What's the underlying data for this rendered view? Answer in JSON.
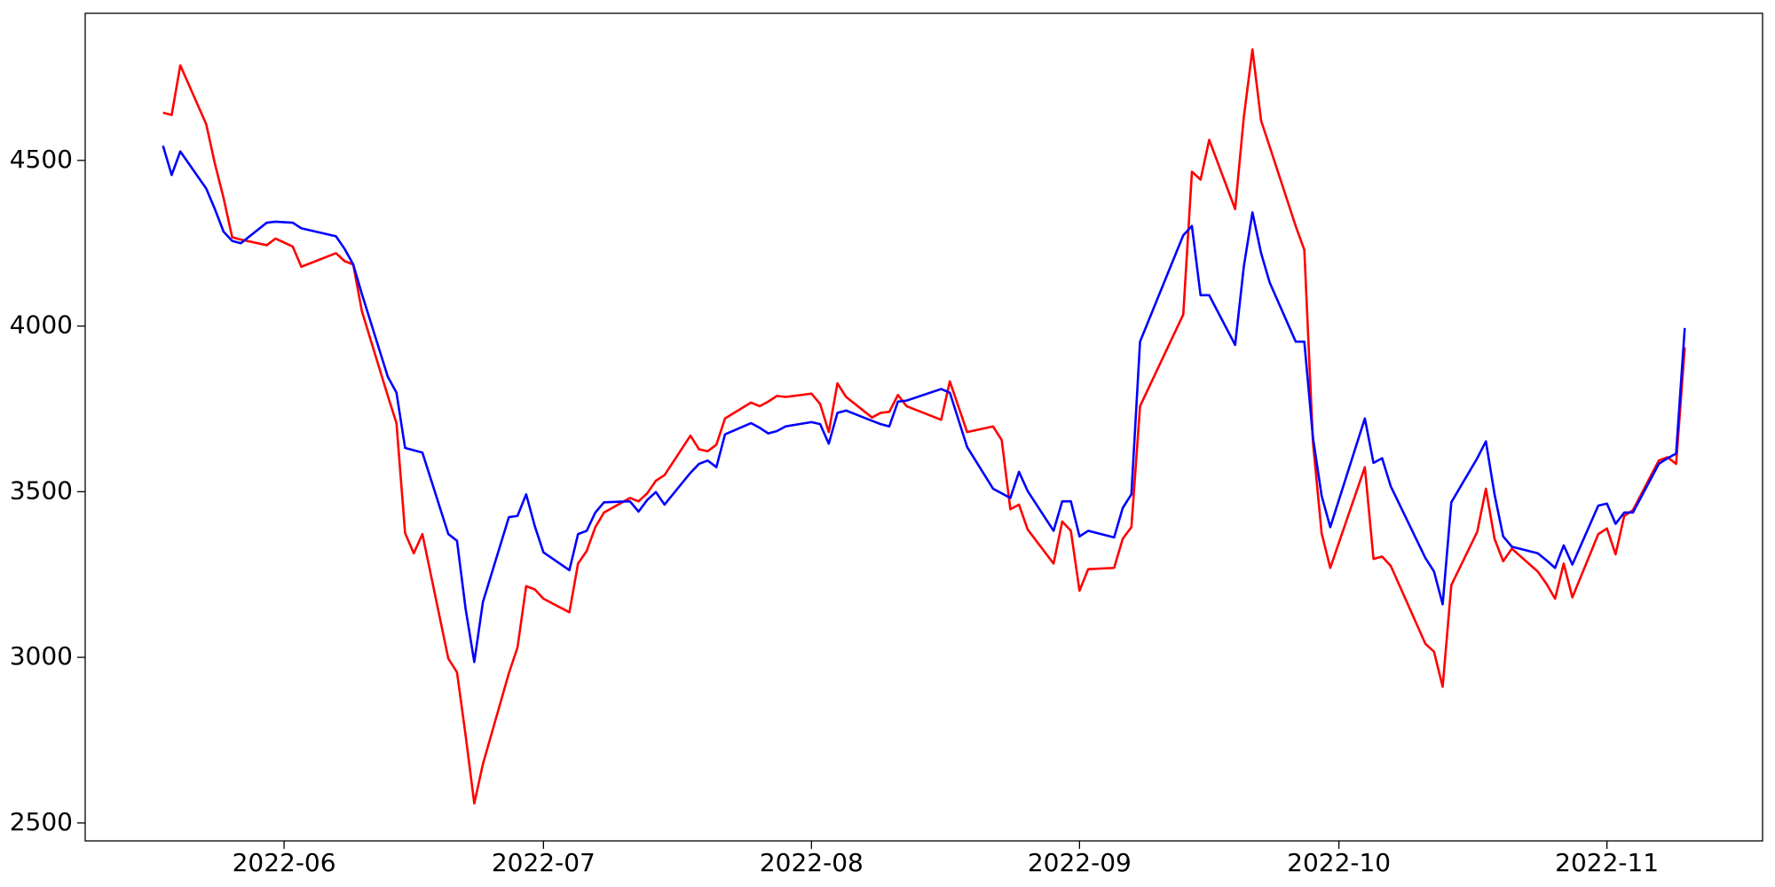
{
  "chart_data": {
    "type": "line",
    "x": [
      "2022-05-18",
      "2022-05-19",
      "2022-05-20",
      "2022-05-23",
      "2022-05-24",
      "2022-05-25",
      "2022-05-26",
      "2022-05-27",
      "2022-05-30",
      "2022-05-31",
      "2022-06-02",
      "2022-06-03",
      "2022-06-07",
      "2022-06-08",
      "2022-06-09",
      "2022-06-10",
      "2022-06-13",
      "2022-06-14",
      "2022-06-15",
      "2022-06-16",
      "2022-06-17",
      "2022-06-20",
      "2022-06-21",
      "2022-06-22",
      "2022-06-23",
      "2022-06-24",
      "2022-06-27",
      "2022-06-28",
      "2022-06-29",
      "2022-06-30",
      "2022-07-01",
      "2022-07-04",
      "2022-07-05",
      "2022-07-06",
      "2022-07-07",
      "2022-07-08",
      "2022-07-11",
      "2022-07-12",
      "2022-07-13",
      "2022-07-14",
      "2022-07-15",
      "2022-07-18",
      "2022-07-19",
      "2022-07-20",
      "2022-07-21",
      "2022-07-22",
      "2022-07-25",
      "2022-07-26",
      "2022-07-27",
      "2022-07-28",
      "2022-07-29",
      "2022-08-01",
      "2022-08-02",
      "2022-08-03",
      "2022-08-04",
      "2022-08-05",
      "2022-08-08",
      "2022-08-09",
      "2022-08-10",
      "2022-08-11",
      "2022-08-12",
      "2022-08-16",
      "2022-08-17",
      "2022-08-19",
      "2022-08-22",
      "2022-08-23",
      "2022-08-24",
      "2022-08-25",
      "2022-08-26",
      "2022-08-29",
      "2022-08-30",
      "2022-08-31",
      "2022-09-01",
      "2022-09-02",
      "2022-09-05",
      "2022-09-06",
      "2022-09-07",
      "2022-09-08",
      "2022-09-13",
      "2022-09-14",
      "2022-09-15",
      "2022-09-16",
      "2022-09-19",
      "2022-09-20",
      "2022-09-21",
      "2022-09-22",
      "2022-09-23",
      "2022-09-26",
      "2022-09-27",
      "2022-09-28",
      "2022-09-29",
      "2022-09-30",
      "2022-10-04",
      "2022-10-05",
      "2022-10-06",
      "2022-10-07",
      "2022-10-11",
      "2022-10-12",
      "2022-10-13",
      "2022-10-14",
      "2022-10-17",
      "2022-10-18",
      "2022-10-19",
      "2022-10-20",
      "2022-10-21",
      "2022-10-24",
      "2022-10-25",
      "2022-10-26",
      "2022-10-27",
      "2022-10-28",
      "2022-10-31",
      "2022-11-01",
      "2022-11-02",
      "2022-11-03",
      "2022-11-04",
      "2022-11-07",
      "2022-11-08",
      "2022-11-09",
      "2022-11-10"
    ],
    "series": [
      {
        "color": "#ff0000",
        "values": [
          4644,
          4637,
          4787,
          4609,
          4490,
          4387,
          4268,
          4261,
          4244,
          4264,
          4240,
          4179,
          4220,
          4196,
          4186,
          4045,
          3789,
          3707,
          3375,
          3314,
          3372,
          2996,
          2955,
          2764,
          2559,
          2678,
          2952,
          3030,
          3215,
          3205,
          3177,
          3136,
          3283,
          3321,
          3393,
          3437,
          3481,
          3471,
          3495,
          3533,
          3550,
          3669,
          3628,
          3622,
          3642,
          3721,
          3769,
          3758,
          3772,
          3789,
          3786,
          3796,
          3765,
          3680,
          3827,
          3786,
          3724,
          3738,
          3741,
          3792,
          3758,
          3717,
          3833,
          3680,
          3697,
          3656,
          3447,
          3461,
          3386,
          3283,
          3410,
          3382,
          3201,
          3266,
          3270,
          3358,
          3393,
          3758,
          4035,
          4466,
          4442,
          4562,
          4353,
          4630,
          4835,
          4620,
          4541,
          4302,
          4230,
          3649,
          3375,
          3270,
          3574,
          3297,
          3304,
          3276,
          3041,
          3017,
          2911,
          3218,
          3379,
          3509,
          3358,
          3290,
          3328,
          3259,
          3222,
          3177,
          3283,
          3181,
          3372,
          3389,
          3311,
          3427,
          3444,
          3594,
          3604,
          3584,
          3936
        ]
      },
      {
        "color": "#0000ff",
        "values": [
          4544,
          4456,
          4527,
          4415,
          4353,
          4285,
          4257,
          4250,
          4312,
          4315,
          4312,
          4295,
          4271,
          4233,
          4186,
          4097,
          3847,
          3799,
          3632,
          3625,
          3618,
          3372,
          3352,
          3146,
          2986,
          3167,
          3423,
          3427,
          3492,
          3396,
          3317,
          3263,
          3372,
          3382,
          3437,
          3468,
          3471,
          3440,
          3475,
          3499,
          3461,
          3557,
          3584,
          3594,
          3574,
          3673,
          3707,
          3693,
          3676,
          3683,
          3697,
          3710,
          3704,
          3645,
          3738,
          3745,
          3714,
          3704,
          3697,
          3772,
          3775,
          3810,
          3799,
          3635,
          3509,
          3495,
          3481,
          3560,
          3502,
          3382,
          3471,
          3471,
          3365,
          3382,
          3362,
          3451,
          3492,
          3953,
          4274,
          4302,
          4093,
          4093,
          3943,
          4179,
          4343,
          4220,
          4131,
          3953,
          3953,
          3663,
          3488,
          3393,
          3721,
          3587,
          3601,
          3516,
          3300,
          3259,
          3160,
          3468,
          3601,
          3652,
          3492,
          3365,
          3334,
          3314,
          3293,
          3270,
          3338,
          3280,
          3458,
          3464,
          3403,
          3437,
          3437,
          3584,
          3601,
          3615,
          3994
        ]
      }
    ],
    "xlim": [
      "2022-05-09",
      "2022-11-19"
    ],
    "xticks": [
      {
        "value": "2022-06-01",
        "label": "2022-06"
      },
      {
        "value": "2022-07-01",
        "label": "2022-07"
      },
      {
        "value": "2022-08-01",
        "label": "2022-08"
      },
      {
        "value": "2022-09-01",
        "label": "2022-09"
      },
      {
        "value": "2022-10-01",
        "label": "2022-10"
      },
      {
        "value": "2022-11-01",
        "label": "2022-11"
      }
    ],
    "ylim": [
      2446,
      4944
    ],
    "yticks": [
      2500,
      3000,
      3500,
      4000,
      4500
    ],
    "grid": false
  }
}
